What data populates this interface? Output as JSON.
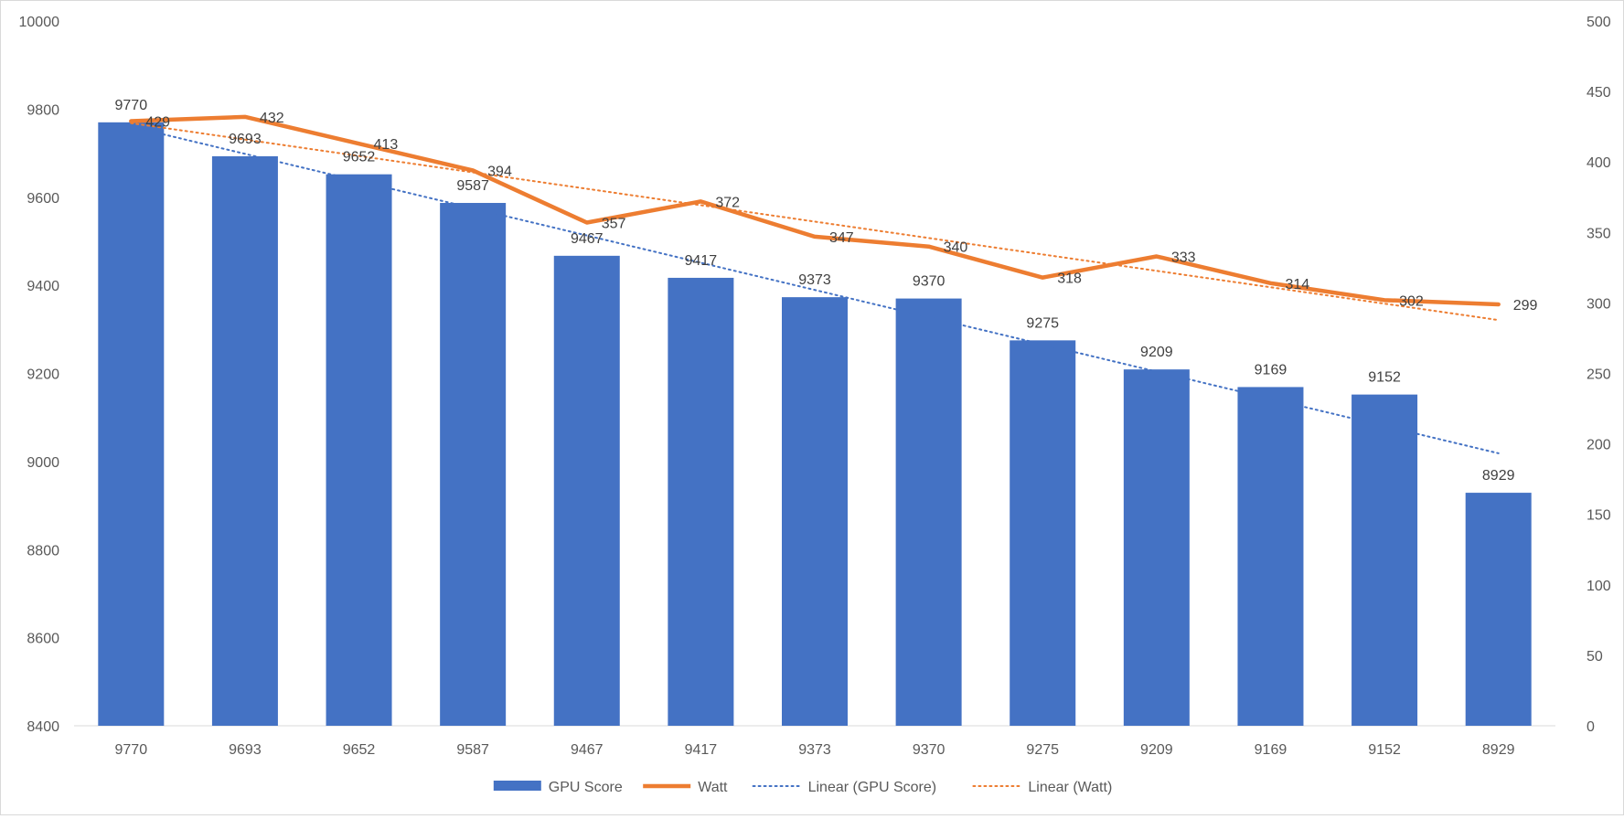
{
  "chart_data": {
    "type": "bar",
    "title": "",
    "categories": [
      "9770",
      "9693",
      "9652",
      "9587",
      "9467",
      "9417",
      "9373",
      "9370",
      "9275",
      "9209",
      "9169",
      "9152",
      "8929"
    ],
    "series": [
      {
        "name": "GPU Score",
        "kind": "bar",
        "axis": "left",
        "color": "#4472C4",
        "values": [
          9770,
          9693,
          9652,
          9587,
          9467,
          9417,
          9373,
          9370,
          9275,
          9209,
          9169,
          9152,
          8929
        ]
      },
      {
        "name": "Watt",
        "kind": "line",
        "axis": "right",
        "color": "#ED7D31",
        "values": [
          429,
          432,
          413,
          394,
          357,
          372,
          347,
          340,
          318,
          333,
          314,
          302,
          299
        ]
      }
    ],
    "trendlines": [
      {
        "name": "Linear (GPU Score)",
        "of": "GPU Score",
        "type": "linear",
        "color": "#4472C4",
        "style": "dotted"
      },
      {
        "name": "Linear (Watt)",
        "of": "Watt",
        "type": "linear",
        "color": "#ED7D31",
        "style": "dotted"
      }
    ],
    "y_left": {
      "min": 8400,
      "max": 10000,
      "step": 200,
      "ticks": [
        "8400",
        "8600",
        "8800",
        "9000",
        "9200",
        "9400",
        "9600",
        "9800",
        "10000"
      ]
    },
    "y_right": {
      "min": 0,
      "max": 500,
      "step": 50,
      "ticks": [
        "0",
        "50",
        "100",
        "150",
        "200",
        "250",
        "300",
        "350",
        "400",
        "450",
        "500"
      ]
    },
    "xlabel": "",
    "ylabel": "",
    "grid": false,
    "data_labels": true,
    "legend": {
      "position": "bottom",
      "entries": [
        {
          "label": "GPU Score",
          "symbol": "bar",
          "color": "#4472C4"
        },
        {
          "label": "Watt",
          "symbol": "line",
          "color": "#ED7D31"
        },
        {
          "label": "Linear (GPU Score)",
          "symbol": "dotted",
          "color": "#4472C4"
        },
        {
          "label": "Linear (Watt)",
          "symbol": "dotted",
          "color": "#ED7D31"
        }
      ]
    }
  }
}
